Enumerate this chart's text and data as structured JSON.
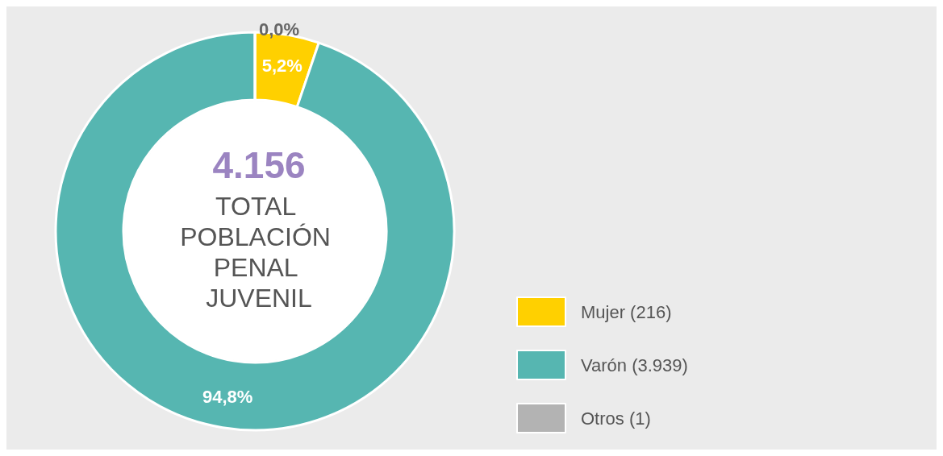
{
  "chart_data": {
    "type": "donut",
    "title": "4.156",
    "subtitle": "TOTAL POBLACIÓN PENAL JUVENIL",
    "categories": [
      "Mujer (216)",
      "Varón (3.939)",
      "Otros (1)"
    ],
    "values": [
      5.2,
      94.8,
      0.0
    ],
    "colors": [
      "#ffd000",
      "#56b6b1",
      "#b3b3b3"
    ],
    "value_labels": [
      "5,2%",
      "94,8%",
      "0,0%"
    ],
    "legend": "right"
  }
}
